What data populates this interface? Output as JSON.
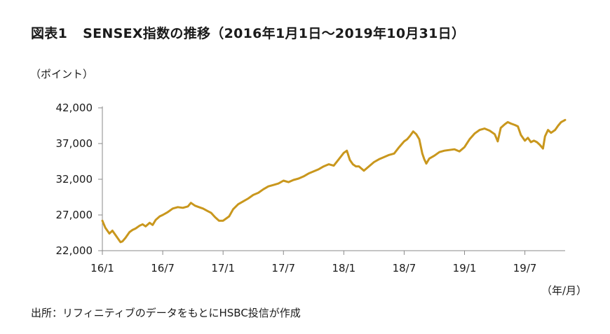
{
  "header": {
    "figure_label": "図表1",
    "title": "SENSEX指数の推移（2016年1月1日～2019年10月31日）"
  },
  "chart_data": {
    "type": "line",
    "title": "SENSEX指数の推移（2016年1月1日～2019年10月31日）",
    "ylabel": "（ポイント）",
    "xlabel": "（年/月）",
    "ylim": [
      22000,
      42000
    ],
    "yticks": [
      22000,
      27000,
      32000,
      37000,
      42000
    ],
    "ytick_labels": [
      "22,000",
      "27,000",
      "32,000",
      "37,000",
      "42,000"
    ],
    "xlim": [
      0,
      46
    ],
    "xticks": [
      0,
      6,
      12,
      18,
      24,
      30,
      36,
      42
    ],
    "xtick_labels": [
      "16/1",
      "16/7",
      "17/1",
      "17/7",
      "18/1",
      "18/7",
      "19/1",
      "19/7"
    ],
    "grid": false,
    "line_color": "#C9971D",
    "series": [
      {
        "name": "",
        "x": [
          0,
          0.3,
          0.7,
          1.0,
          1.3,
          1.6,
          1.8,
          2.0,
          2.3,
          2.7,
          3.0,
          3.3,
          3.7,
          4.0,
          4.3,
          4.7,
          5.0,
          5.3,
          5.7,
          6.0,
          6.5,
          7.0,
          7.5,
          8.0,
          8.5,
          8.8,
          9.2,
          9.6,
          10.0,
          10.4,
          10.8,
          11.2,
          11.6,
          12.0,
          12.3,
          12.6,
          13.0,
          13.5,
          14.0,
          14.5,
          15.0,
          15.5,
          16.0,
          16.5,
          17.0,
          17.5,
          18.0,
          18.5,
          19.0,
          19.5,
          20.0,
          20.5,
          21.0,
          21.5,
          22.0,
          22.5,
          23.0,
          23.5,
          24.0,
          24.3,
          24.6,
          24.9,
          25.2,
          25.5,
          26.0,
          26.5,
          27.0,
          27.5,
          28.0,
          28.5,
          29.0,
          29.5,
          30.0,
          30.3,
          30.6,
          30.9,
          31.2,
          31.5,
          31.8,
          32.0,
          32.2,
          32.5,
          33.0,
          33.5,
          34.0,
          34.5,
          35.0,
          35.5,
          36.0,
          36.5,
          37.0,
          37.5,
          38.0,
          38.5,
          39.0,
          39.3,
          39.6,
          40.0,
          40.3,
          40.6,
          41.0,
          41.3,
          41.6,
          42.0,
          42.3,
          42.6,
          42.9,
          43.2,
          43.5,
          43.8,
          44.0,
          44.3,
          44.6,
          45.0,
          45.3,
          45.6,
          46.0
        ],
        "values": [
          26200,
          25200,
          24400,
          24800,
          24200,
          23600,
          23200,
          23300,
          23800,
          24600,
          24900,
          25100,
          25500,
          25700,
          25400,
          25900,
          25600,
          26300,
          26800,
          27000,
          27400,
          27900,
          28100,
          28000,
          28200,
          28700,
          28300,
          28100,
          27900,
          27600,
          27300,
          26700,
          26200,
          26200,
          26500,
          26800,
          27800,
          28500,
          28900,
          29300,
          29800,
          30100,
          30600,
          31000,
          31200,
          31400,
          31800,
          31600,
          31900,
          32100,
          32400,
          32800,
          33100,
          33400,
          33800,
          34100,
          33900,
          34800,
          35700,
          36000,
          34700,
          34100,
          33800,
          33800,
          33200,
          33800,
          34400,
          34800,
          35100,
          35400,
          35600,
          36500,
          37300,
          37600,
          38100,
          38700,
          38300,
          37600,
          35600,
          34800,
          34200,
          34900,
          35300,
          35800,
          36000,
          36100,
          36200,
          35900,
          36500,
          37600,
          38400,
          38900,
          39100,
          38800,
          38300,
          37300,
          39200,
          39700,
          40000,
          39800,
          39600,
          39400,
          38200,
          37400,
          37800,
          37200,
          37400,
          37200,
          36800,
          36300,
          38000,
          38900,
          38500,
          38900,
          39500,
          40000,
          40300
        ]
      }
    ]
  },
  "source": "出所：リフィニティブのデータをもとにHSBC投信が作成"
}
